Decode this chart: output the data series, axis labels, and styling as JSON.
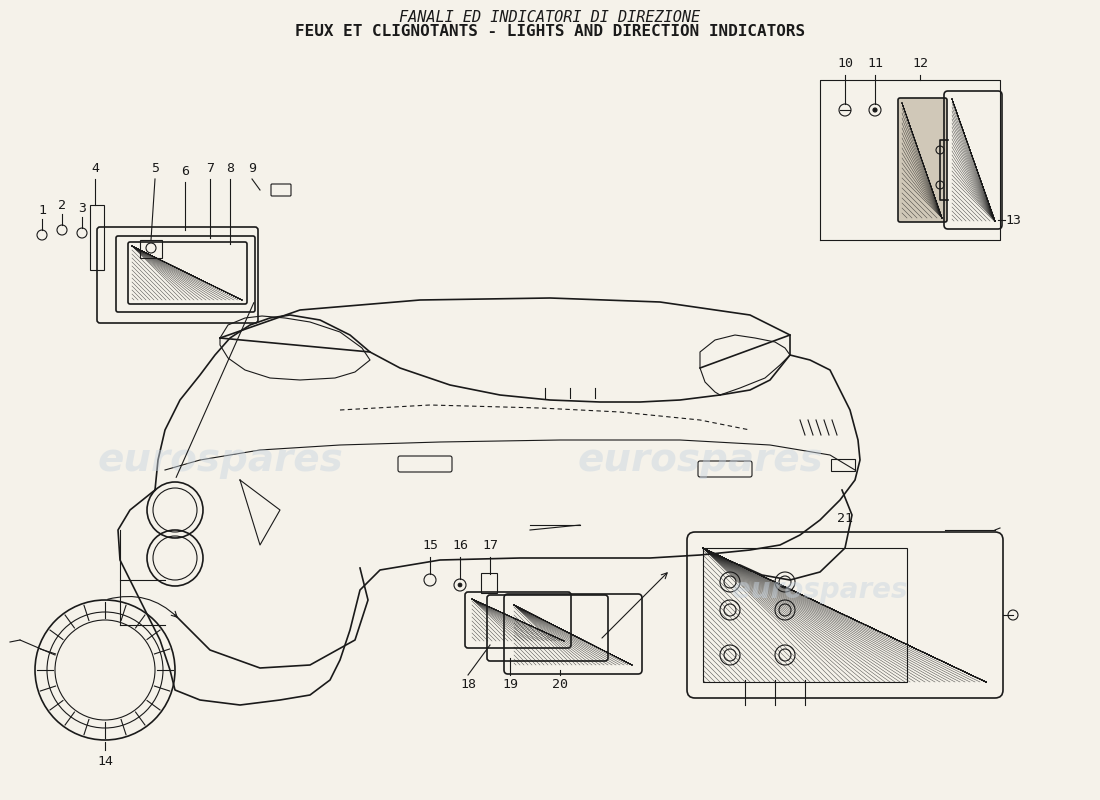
{
  "title_line1": "FANALI ED INDICATORI DI DIREZIONE",
  "title_line2": "FEUX ET CLIGNOTANTS - LIGHTS AND DIRECTION INDICATORS",
  "background_color": "#f5f2ea",
  "line_color": "#1a1a1a",
  "watermark_text": "eurospares",
  "watermark_color": "#c8d4e0",
  "watermark_alpha": 0.45,
  "part_labels_top_left": [
    "1",
    "2",
    "3",
    "4",
    "5",
    "6",
    "7",
    "8",
    "9"
  ],
  "part_labels_top_right": [
    "10",
    "11",
    "12",
    "13"
  ],
  "part_labels_bottom": [
    "14",
    "15",
    "16",
    "17",
    "18",
    "19",
    "20",
    "21"
  ],
  "title_fontsize": 11,
  "label_fontsize": 9.5
}
